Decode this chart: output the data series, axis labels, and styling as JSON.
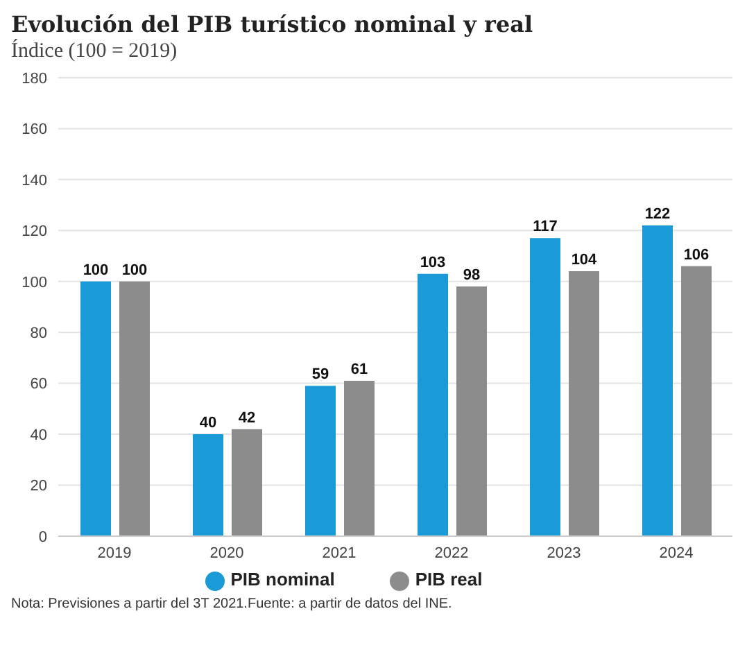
{
  "chart_data": {
    "type": "bar",
    "title": "Evolución del PIB turístico nominal y real",
    "subtitle": "Índice (100 = 2019)",
    "categories": [
      "2019",
      "2020",
      "2021",
      "2022",
      "2023",
      "2024"
    ],
    "series": [
      {
        "name": "PIB nominal",
        "color": "#1a9ad6",
        "values": [
          100,
          40,
          59,
          103,
          117,
          122
        ]
      },
      {
        "name": "PIB real",
        "color": "#8c8c8c",
        "values": [
          100,
          42,
          61,
          98,
          104,
          106
        ]
      }
    ],
    "ylim": [
      0,
      180
    ],
    "yticks": [
      0,
      20,
      40,
      60,
      80,
      100,
      120,
      140,
      160,
      180
    ],
    "grid": "y",
    "legend": "bottom",
    "data_labels": true,
    "annotations": [
      "Nota: Previsiones a partir del 3T 2021.Fuente: a partir de datos del INE."
    ]
  }
}
